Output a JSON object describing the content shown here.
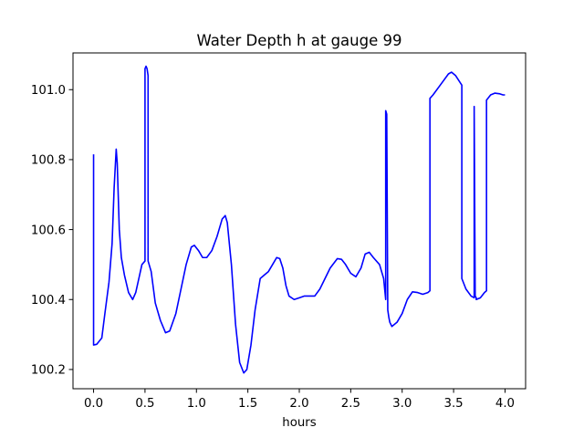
{
  "chart_data": {
    "type": "line",
    "title": "Water Depth h at gauge 99",
    "xlabel": "hours",
    "ylabel": "",
    "xlim": [
      -0.2,
      4.2
    ],
    "ylim": [
      100.145,
      101.105
    ],
    "xticks": [
      0.0,
      0.5,
      1.0,
      1.5,
      2.0,
      2.5,
      3.0,
      3.5,
      4.0
    ],
    "xtick_labels": [
      "0.0",
      "0.5",
      "1.0",
      "1.5",
      "2.0",
      "2.5",
      "3.0",
      "3.5",
      "4.0"
    ],
    "yticks": [
      100.2,
      100.4,
      100.6,
      100.8,
      101.0
    ],
    "ytick_labels": [
      "100.2",
      "100.4",
      "100.6",
      "100.8",
      "101.0"
    ],
    "grid": false,
    "legend": "none",
    "series": [
      {
        "color": "#0000ff",
        "x": [
          0.0,
          0.0,
          0.03,
          0.08,
          0.11,
          0.15,
          0.18,
          0.2,
          0.22,
          0.23,
          0.25,
          0.27,
          0.3,
          0.34,
          0.38,
          0.41,
          0.44,
          0.47,
          0.5,
          0.5,
          0.51,
          0.52,
          0.53,
          0.53,
          0.56,
          0.6,
          0.65,
          0.7,
          0.74,
          0.8,
          0.85,
          0.9,
          0.95,
          0.98,
          1.02,
          1.06,
          1.1,
          1.15,
          1.2,
          1.25,
          1.28,
          1.3,
          1.34,
          1.38,
          1.42,
          1.46,
          1.49,
          1.53,
          1.57,
          1.62,
          1.66,
          1.7,
          1.74,
          1.78,
          1.81,
          1.84,
          1.87,
          1.9,
          1.95,
          2.0,
          2.05,
          2.1,
          2.15,
          2.2,
          2.3,
          2.37,
          2.41,
          2.45,
          2.5,
          2.55,
          2.6,
          2.64,
          2.68,
          2.72,
          2.78,
          2.82,
          2.84,
          2.84,
          2.85,
          2.86,
          2.87,
          2.88,
          2.9,
          2.95,
          3.0,
          3.05,
          3.1,
          3.15,
          3.2,
          3.25,
          3.27,
          3.27,
          3.3,
          3.4,
          3.45,
          3.48,
          3.52,
          3.58,
          3.58,
          3.62,
          3.67,
          3.7,
          3.7,
          3.71,
          3.72,
          3.72,
          3.76,
          3.8,
          3.82,
          3.82,
          3.86,
          3.9,
          3.95,
          3.98,
          4.0
        ],
        "y": [
          100.815,
          100.27,
          100.272,
          100.29,
          100.36,
          100.45,
          100.56,
          100.72,
          100.83,
          100.79,
          100.6,
          100.52,
          100.47,
          100.42,
          100.4,
          100.42,
          100.46,
          100.5,
          100.51,
          101.06,
          101.067,
          101.06,
          101.04,
          100.51,
          100.48,
          100.39,
          100.34,
          100.305,
          100.31,
          100.36,
          100.43,
          100.5,
          100.55,
          100.555,
          100.54,
          100.52,
          100.52,
          100.54,
          100.58,
          100.63,
          100.64,
          100.62,
          100.5,
          100.33,
          100.22,
          100.19,
          100.2,
          100.27,
          100.37,
          100.46,
          100.47,
          100.48,
          100.5,
          100.52,
          100.517,
          100.49,
          100.44,
          100.41,
          100.4,
          100.405,
          100.41,
          100.41,
          100.41,
          100.43,
          100.49,
          100.517,
          100.515,
          100.5,
          100.475,
          100.465,
          100.49,
          100.53,
          100.535,
          100.52,
          100.5,
          100.46,
          100.4,
          100.94,
          100.93,
          100.37,
          100.35,
          100.335,
          100.323,
          100.335,
          100.36,
          100.4,
          100.422,
          100.42,
          100.415,
          100.42,
          100.425,
          100.975,
          100.985,
          101.025,
          101.045,
          101.05,
          101.04,
          101.013,
          100.46,
          100.43,
          100.41,
          100.405,
          100.952,
          100.41,
          100.405,
          100.4,
          100.405,
          100.42,
          100.425,
          100.97,
          100.985,
          100.99,
          100.988,
          100.985,
          100.985
        ]
      }
    ]
  }
}
